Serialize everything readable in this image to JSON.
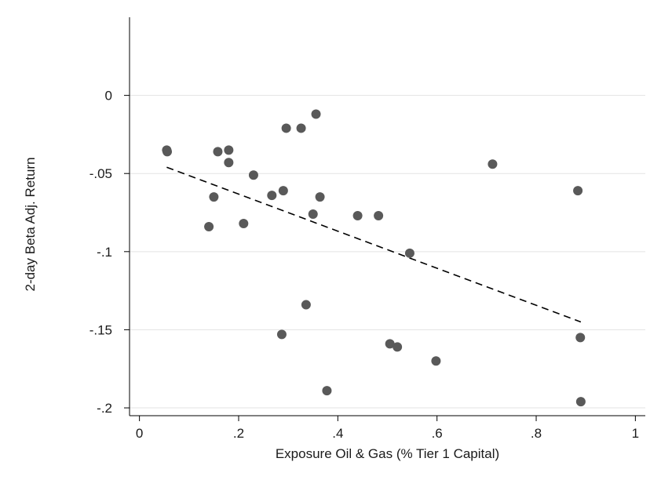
{
  "chart_data": {
    "type": "scatter",
    "title": "",
    "xlabel": "Exposure Oil & Gas (% Tier 1 Capital)",
    "ylabel": "2-day Beta Adj. Return",
    "xlim": [
      -0.02,
      1.02
    ],
    "ylim": [
      -0.205,
      0.05
    ],
    "x_ticks": [
      0,
      0.2,
      0.4,
      0.6,
      0.8,
      1
    ],
    "x_tick_labels": [
      "0",
      ".2",
      ".4",
      ".6",
      ".8",
      "1"
    ],
    "y_ticks": [
      0,
      -0.05,
      -0.1,
      -0.15,
      -0.2
    ],
    "y_tick_labels": [
      "0",
      "-.05",
      "-.1",
      "-.15",
      "-.2"
    ],
    "grid": "horizontal",
    "legend": "none",
    "series": [
      {
        "points": [
          {
            "x": 0.055,
            "y": -0.035
          },
          {
            "x": 0.056,
            "y": -0.036
          },
          {
            "x": 0.14,
            "y": -0.084
          },
          {
            "x": 0.15,
            "y": -0.065
          },
          {
            "x": 0.158,
            "y": -0.036
          },
          {
            "x": 0.18,
            "y": -0.035
          },
          {
            "x": 0.18,
            "y": -0.043
          },
          {
            "x": 0.21,
            "y": -0.082
          },
          {
            "x": 0.23,
            "y": -0.051
          },
          {
            "x": 0.267,
            "y": -0.064
          },
          {
            "x": 0.287,
            "y": -0.153
          },
          {
            "x": 0.29,
            "y": -0.061
          },
          {
            "x": 0.296,
            "y": -0.021
          },
          {
            "x": 0.326,
            "y": -0.021
          },
          {
            "x": 0.336,
            "y": -0.134
          },
          {
            "x": 0.35,
            "y": -0.076
          },
          {
            "x": 0.356,
            "y": -0.012
          },
          {
            "x": 0.364,
            "y": -0.065
          },
          {
            "x": 0.378,
            "y": -0.189
          },
          {
            "x": 0.44,
            "y": -0.077
          },
          {
            "x": 0.482,
            "y": -0.077
          },
          {
            "x": 0.505,
            "y": -0.159
          },
          {
            "x": 0.52,
            "y": -0.161
          },
          {
            "x": 0.545,
            "y": -0.101
          },
          {
            "x": 0.598,
            "y": -0.17
          },
          {
            "x": 0.712,
            "y": -0.044
          },
          {
            "x": 0.884,
            "y": -0.061
          },
          {
            "x": 0.889,
            "y": -0.155
          },
          {
            "x": 0.89,
            "y": -0.196
          }
        ],
        "color": "#595959"
      }
    ],
    "fit_line": {
      "x": [
        0.055,
        0.89
      ],
      "y": [
        -0.046,
        -0.145
      ],
      "style": "dashed",
      "color": "#000000"
    }
  }
}
